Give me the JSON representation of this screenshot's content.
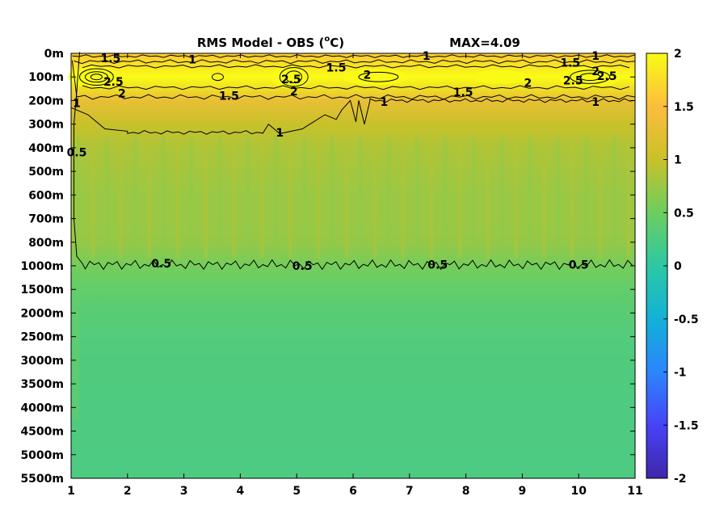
{
  "chart_data": {
    "type": "heatmap",
    "title": "RMS Model - OBS (",
    "title_unit_sup": "o",
    "title_unit_tail": "C)",
    "max_text": "MAX=4.09",
    "x_ticks": [
      "1",
      "2",
      "3",
      "4",
      "5",
      "6",
      "7",
      "8",
      "9",
      "10",
      "11"
    ],
    "x_range": [
      1,
      11
    ],
    "y_tick_labels": [
      "0m",
      "100m",
      "200m",
      "300m",
      "400m",
      "500m",
      "600m",
      "700m",
      "800m",
      "1000m",
      "1500m",
      "2000m",
      "2500m",
      "3000m",
      "3500m",
      "4000m",
      "4500m",
      "5000m",
      "5500m"
    ],
    "colorbar": {
      "range": [
        -2,
        2
      ],
      "ticks": [
        "2",
        "1.5",
        "1",
        "0.5",
        "0",
        "-0.5",
        "-1",
        "-1.5",
        "-2"
      ],
      "colors": [
        "#3e26a8",
        "#4743f7",
        "#2c85fd",
        "#12b1d6",
        "#2dc8a4",
        "#6cce5f",
        "#c9c129",
        "#fcbd3d",
        "#f9fb15"
      ]
    },
    "profile": {
      "levels": [
        0,
        1,
        2,
        3,
        4,
        5,
        6,
        7,
        8,
        9,
        10,
        11,
        12,
        13,
        14,
        15,
        16,
        17,
        18
      ],
      "values": [
        1.6,
        2.4,
        1.3,
        1.0,
        0.85,
        0.8,
        0.75,
        0.75,
        0.72,
        0.55,
        0.42,
        0.35,
        0.3,
        0.28,
        0.27,
        0.26,
        0.26,
        0.25,
        0.25
      ]
    },
    "contour_labels": [
      {
        "text": "1.5",
        "x": 1.7,
        "y": 0.2
      },
      {
        "text": "1",
        "x": 3.15,
        "y": 0.25
      },
      {
        "text": "2.5",
        "x": 1.75,
        "y": 1.2
      },
      {
        "text": "2",
        "x": 1.9,
        "y": 1.7
      },
      {
        "text": "1.5",
        "x": 3.8,
        "y": 1.8
      },
      {
        "text": "2.5",
        "x": 4.9,
        "y": 1.1
      },
      {
        "text": "2",
        "x": 4.95,
        "y": 1.6
      },
      {
        "text": "1.5",
        "x": 5.7,
        "y": 0.6
      },
      {
        "text": "2",
        "x": 6.25,
        "y": 0.9
      },
      {
        "text": "1",
        "x": 7.3,
        "y": 0.1
      },
      {
        "text": "1.5",
        "x": 7.95,
        "y": 1.65
      },
      {
        "text": "1",
        "x": 6.55,
        "y": 2.05
      },
      {
        "text": "2",
        "x": 9.1,
        "y": 1.25
      },
      {
        "text": "1.5",
        "x": 9.85,
        "y": 0.4
      },
      {
        "text": "1",
        "x": 10.3,
        "y": 0.1
      },
      {
        "text": "2",
        "x": 10.3,
        "y": 0.75
      },
      {
        "text": "2.5",
        "x": 9.9,
        "y": 1.15
      },
      {
        "text": "2.5",
        "x": 10.5,
        "y": 0.95
      },
      {
        "text": "1",
        "x": 10.3,
        "y": 2.05
      },
      {
        "text": "1",
        "x": 1.1,
        "y": 2.1
      },
      {
        "text": "1",
        "x": 4.7,
        "y": 3.35
      },
      {
        "text": "0.5",
        "x": 1.1,
        "y": 4.2
      },
      {
        "text": "0.5",
        "x": 2.6,
        "y": 8.9
      },
      {
        "text": "0.5",
        "x": 5.1,
        "y": 9.0
      },
      {
        "text": "0.5",
        "x": 7.5,
        "y": 8.95
      },
      {
        "text": "0.5",
        "x": 10.0,
        "y": 8.95
      }
    ]
  }
}
